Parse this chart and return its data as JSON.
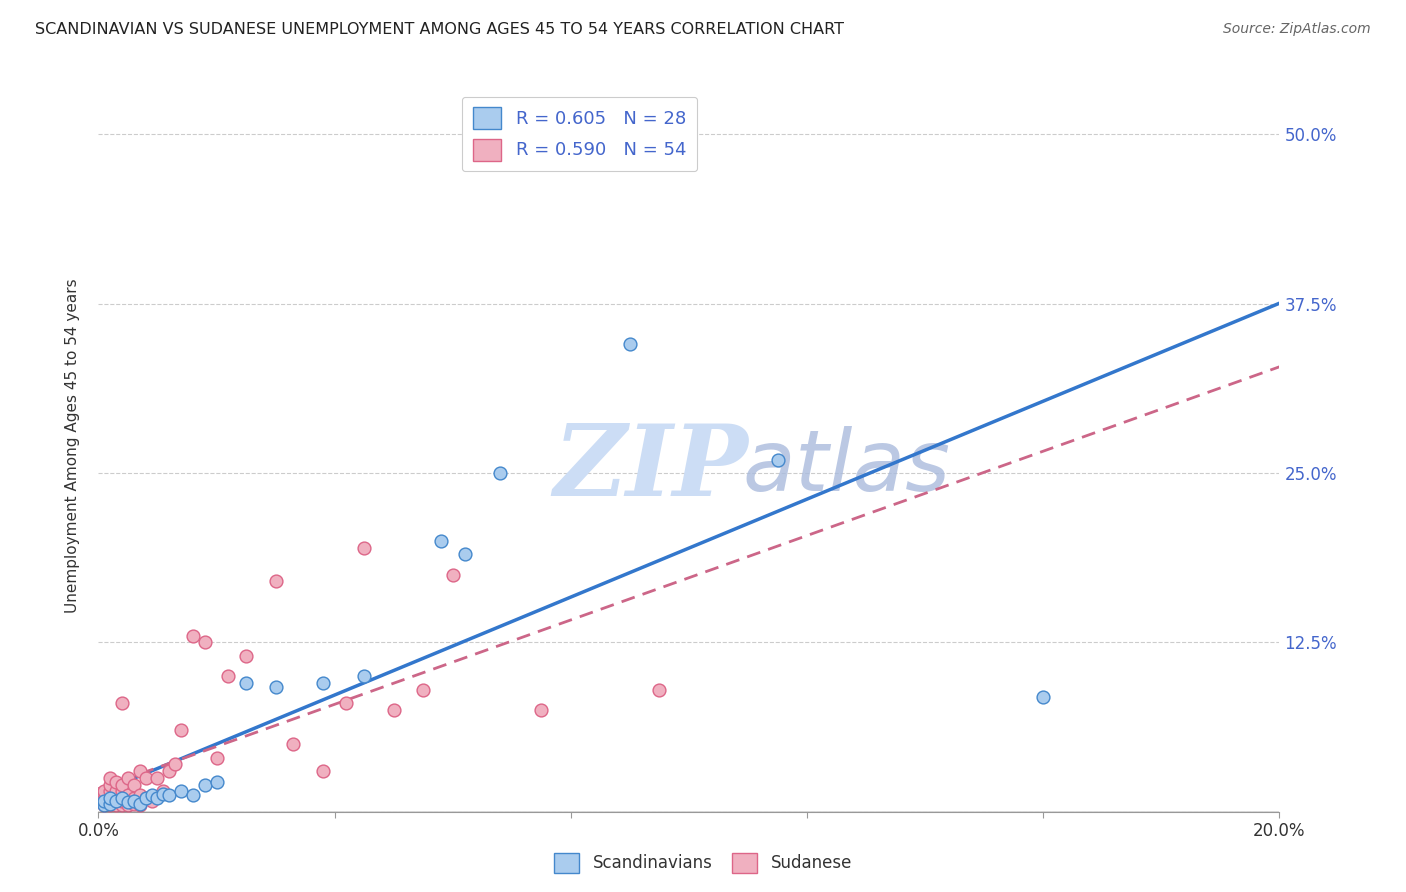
{
  "title": "SCANDINAVIAN VS SUDANESE UNEMPLOYMENT AMONG AGES 45 TO 54 YEARS CORRELATION CHART",
  "source": "Source: ZipAtlas.com",
  "ylabel": "Unemployment Among Ages 45 to 54 years",
  "xlim": [
    0.0,
    0.2
  ],
  "ylim": [
    0.0,
    0.54
  ],
  "yticks": [
    0.0,
    0.125,
    0.25,
    0.375,
    0.5
  ],
  "ytick_labels_right": [
    "",
    "12.5%",
    "25.0%",
    "37.5%",
    "50.0%"
  ],
  "xticks": [
    0.0,
    0.04,
    0.08,
    0.12,
    0.16,
    0.2
  ],
  "xtick_labels": [
    "0.0%",
    "",
    "",
    "",
    "",
    "20.0%"
  ],
  "scandinavian_fill": "#aaccee",
  "sudanese_fill": "#f0b0c0",
  "scandinavian_edge": "#4488cc",
  "sudanese_edge": "#dd6688",
  "scandinavian_line": "#3377cc",
  "sudanese_line": "#cc6688",
  "legend_text_color": "#4466cc",
  "background_color": "#ffffff",
  "grid_color": "#cccccc",
  "watermark_zip_color": "#ccddf0",
  "watermark_atlas_color": "#aabbdd",
  "scandinavians_x": [
    0.001,
    0.001,
    0.002,
    0.002,
    0.003,
    0.004,
    0.005,
    0.006,
    0.007,
    0.008,
    0.009,
    0.01,
    0.011,
    0.012,
    0.014,
    0.016,
    0.018,
    0.02,
    0.025,
    0.03,
    0.038,
    0.045,
    0.058,
    0.062,
    0.068,
    0.09,
    0.115,
    0.16
  ],
  "scandinavians_y": [
    0.005,
    0.008,
    0.006,
    0.01,
    0.008,
    0.01,
    0.007,
    0.008,
    0.006,
    0.01,
    0.012,
    0.01,
    0.013,
    0.012,
    0.015,
    0.012,
    0.02,
    0.022,
    0.095,
    0.092,
    0.095,
    0.1,
    0.2,
    0.19,
    0.25,
    0.345,
    0.26,
    0.085
  ],
  "sudanese_x": [
    0.001,
    0.001,
    0.001,
    0.001,
    0.001,
    0.002,
    0.002,
    0.002,
    0.002,
    0.002,
    0.002,
    0.003,
    0.003,
    0.003,
    0.003,
    0.003,
    0.004,
    0.004,
    0.004,
    0.004,
    0.004,
    0.005,
    0.005,
    0.005,
    0.005,
    0.006,
    0.006,
    0.006,
    0.007,
    0.007,
    0.007,
    0.008,
    0.008,
    0.009,
    0.01,
    0.011,
    0.012,
    0.013,
    0.014,
    0.016,
    0.018,
    0.02,
    0.022,
    0.025,
    0.03,
    0.033,
    0.038,
    0.042,
    0.045,
    0.05,
    0.055,
    0.06,
    0.075,
    0.095
  ],
  "sudanese_y": [
    0.005,
    0.006,
    0.008,
    0.01,
    0.015,
    0.005,
    0.007,
    0.01,
    0.015,
    0.02,
    0.025,
    0.005,
    0.008,
    0.01,
    0.015,
    0.022,
    0.005,
    0.008,
    0.015,
    0.02,
    0.08,
    0.005,
    0.008,
    0.012,
    0.025,
    0.006,
    0.01,
    0.02,
    0.005,
    0.012,
    0.03,
    0.01,
    0.025,
    0.008,
    0.025,
    0.015,
    0.03,
    0.035,
    0.06,
    0.13,
    0.125,
    0.04,
    0.1,
    0.115,
    0.17,
    0.05,
    0.03,
    0.08,
    0.195,
    0.075,
    0.09,
    0.175,
    0.075,
    0.09
  ]
}
